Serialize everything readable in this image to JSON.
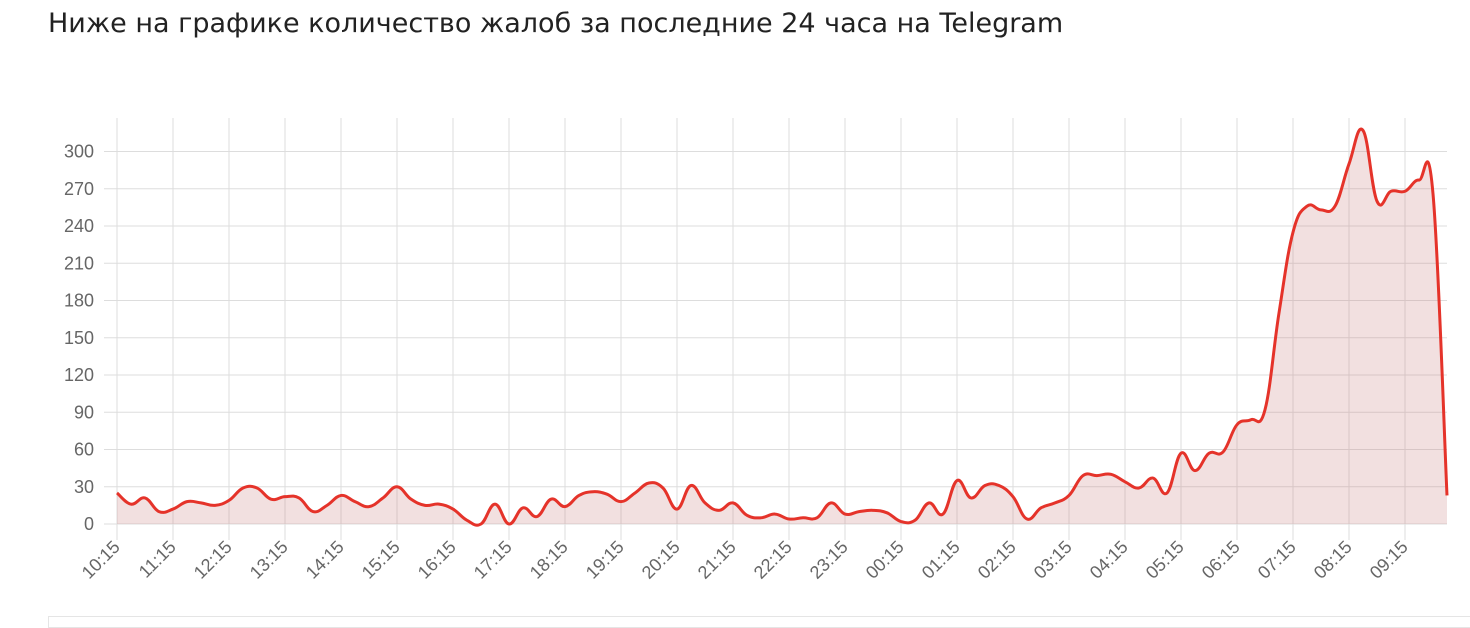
{
  "chart_data": {
    "type": "line",
    "title": "Ниже на графике количество жалоб за последние 24 часа на Telegram",
    "categories": [
      "10:15",
      null,
      null,
      null,
      "11:15",
      null,
      null,
      null,
      "12:15",
      null,
      null,
      null,
      "13:15",
      null,
      null,
      null,
      "14:15",
      null,
      null,
      null,
      "15:15",
      null,
      null,
      null,
      "16:15",
      null,
      null,
      null,
      "17:15",
      null,
      null,
      null,
      "18:15",
      null,
      null,
      null,
      "19:15",
      null,
      null,
      null,
      "20:15",
      null,
      null,
      null,
      "21:15",
      null,
      null,
      null,
      "22:15",
      null,
      null,
      null,
      "23:15",
      null,
      null,
      null,
      "00:15",
      null,
      null,
      null,
      "01:15",
      null,
      null,
      null,
      "02:15",
      null,
      null,
      null,
      "03:15",
      null,
      null,
      null,
      "04:15",
      null,
      null,
      null,
      "05:15",
      null,
      null,
      null,
      "06:15",
      null,
      null,
      null,
      "07:15",
      null,
      null,
      null,
      "08:15",
      null,
      null,
      null,
      "09:15",
      null,
      null,
      null
    ],
    "values": [
      25,
      16,
      21,
      10,
      12,
      18,
      17,
      15,
      19,
      29,
      29,
      20,
      22,
      21,
      10,
      15,
      23,
      18,
      14,
      21,
      30,
      20,
      15,
      16,
      12,
      3,
      0,
      16,
      0,
      13,
      6,
      20,
      14,
      23,
      26,
      24,
      18,
      25,
      33,
      29,
      12,
      31,
      17,
      11,
      17,
      7,
      5,
      8,
      4,
      5,
      5,
      17,
      8,
      10,
      11,
      9,
      2,
      3,
      17,
      8,
      35,
      21,
      31,
      31,
      22,
      4,
      13,
      17,
      23,
      39,
      39,
      40,
      34,
      29,
      37,
      25,
      57,
      43,
      57,
      58,
      80,
      84,
      92,
      170,
      235,
      256,
      253,
      256,
      290,
      317,
      260,
      268,
      268,
      277,
      266,
      23
    ],
    "color": "#e5332a",
    "fill": "rgba(205,130,130,0.25)",
    "ylim": [
      0,
      327
    ],
    "yticks": [
      0,
      30,
      60,
      90,
      120,
      150,
      180,
      210,
      240,
      270,
      300
    ],
    "grid": true
  }
}
